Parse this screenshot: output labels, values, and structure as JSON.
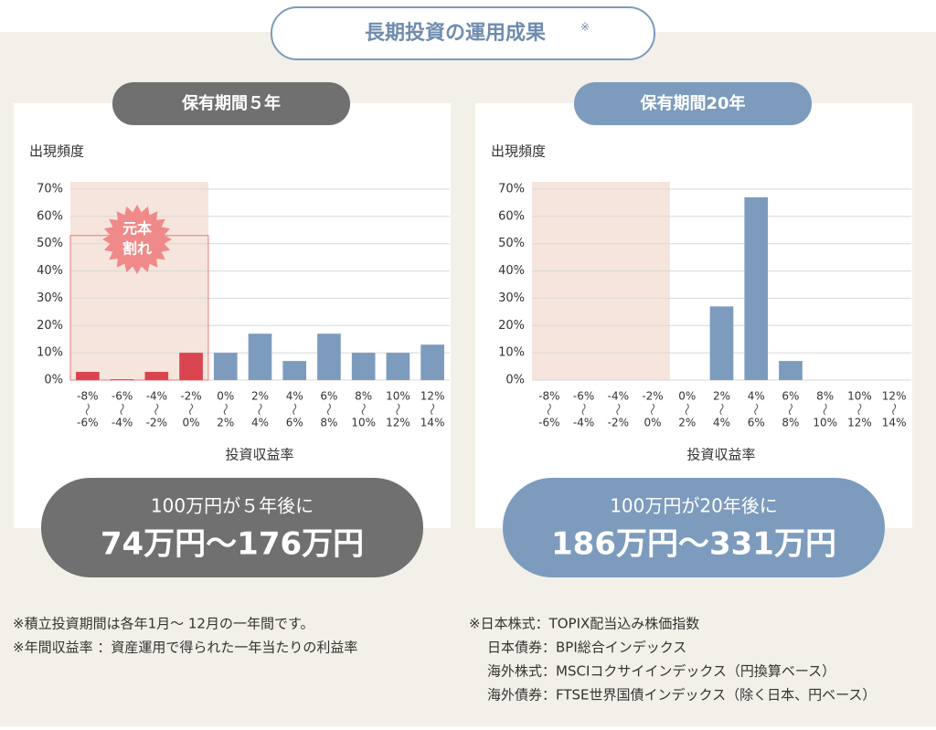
{
  "title": "長期投資の運用成果",
  "title_mark": "※",
  "chart_data": [
    {
      "type": "bar",
      "panel_title": "保有期間５年",
      "y_label": "出現頻度",
      "x_label": "投資収益率",
      "categories": [
        [
          "-8%",
          "-6%"
        ],
        [
          "-6%",
          "-4%"
        ],
        [
          "-4%",
          "-2%"
        ],
        [
          "-2%",
          "0%"
        ],
        [
          "0%",
          "2%"
        ],
        [
          "2%",
          "4%"
        ],
        [
          "4%",
          "6%"
        ],
        [
          "6%",
          "8%"
        ],
        [
          "8%",
          "10%"
        ],
        [
          "10%",
          "12%"
        ],
        [
          "12%",
          "14%"
        ]
      ],
      "values": [
        3,
        0.3,
        3,
        10,
        10,
        17,
        7,
        17,
        10,
        10,
        13
      ],
      "colors": [
        "#d9444f",
        "#d9444f",
        "#d9444f",
        "#d9444f",
        "#7d9bbd",
        "#7d9bbd",
        "#7d9bbd",
        "#7d9bbd",
        "#7d9bbd",
        "#7d9bbd",
        "#7d9bbd"
      ],
      "ylim": [
        0,
        70
      ],
      "yticks": [
        {
          "value": 0,
          "label": "0%"
        },
        {
          "value": 10,
          "label": "10%"
        },
        {
          "value": 20,
          "label": "20%"
        },
        {
          "value": 30,
          "label": "30%"
        },
        {
          "value": 40,
          "label": "40%"
        },
        {
          "value": 50,
          "label": "50%"
        },
        {
          "value": 60,
          "label": "60%"
        },
        {
          "value": 70,
          "label": "70%"
        }
      ],
      "grid": true,
      "annotation": [
        "元本",
        "割れ"
      ],
      "result": [
        "100万円が５年後に",
        "74万円〜176万円"
      ],
      "result_color": "#707070",
      "header_color": "#707070"
    },
    {
      "type": "bar",
      "panel_title": "保有期間20年",
      "y_label": "出現頻度",
      "x_label": "投資収益率",
      "categories": [
        [
          "-8%",
          "-6%"
        ],
        [
          "-6%",
          "-4%"
        ],
        [
          "-4%",
          "-2%"
        ],
        [
          "-2%",
          "0%"
        ],
        [
          "0%",
          "2%"
        ],
        [
          "2%",
          "4%"
        ],
        [
          "4%",
          "6%"
        ],
        [
          "6%",
          "8%"
        ],
        [
          "8%",
          "10%"
        ],
        [
          "10%",
          "12%"
        ],
        [
          "12%",
          "14%"
        ]
      ],
      "values": [
        0,
        0,
        0,
        0,
        0,
        27,
        67,
        7,
        0,
        0,
        0
      ],
      "colors": [
        "#d9444f",
        "#d9444f",
        "#d9444f",
        "#d9444f",
        "#7d9bbd",
        "#7d9bbd",
        "#7d9bbd",
        "#7d9bbd",
        "#7d9bbd",
        "#7d9bbd",
        "#7d9bbd"
      ],
      "ylim": [
        0,
        70
      ],
      "yticks": [
        {
          "value": 0,
          "label": "0%"
        },
        {
          "value": 10,
          "label": "10%"
        },
        {
          "value": 20,
          "label": "20%"
        },
        {
          "value": 30,
          "label": "30%"
        },
        {
          "value": 40,
          "label": "40%"
        },
        {
          "value": 50,
          "label": "50%"
        },
        {
          "value": 60,
          "label": "60%"
        },
        {
          "value": 70,
          "label": "70%"
        }
      ],
      "grid": true,
      "result": [
        "100万円が20年後に",
        "186万円〜331万円"
      ],
      "result_color": "#7d9bbd",
      "header_color": "#7d9bbd"
    }
  ],
  "notes_left": [
    "※積立投資期間は各年1月〜 12月の一年間です。",
    "※年間収益率 ：資産運用で得られた一年当たりの利益率"
  ],
  "notes_right": [
    "※日本株式：TOPIX配当込み株価指数",
    "日本債券：BPI総合インデックス",
    "海外株式：MSCIコクサイインデックス（円換算ベース）",
    "海外債券：FTSE世界国債インデックス（除く日本、円ベース）"
  ]
}
